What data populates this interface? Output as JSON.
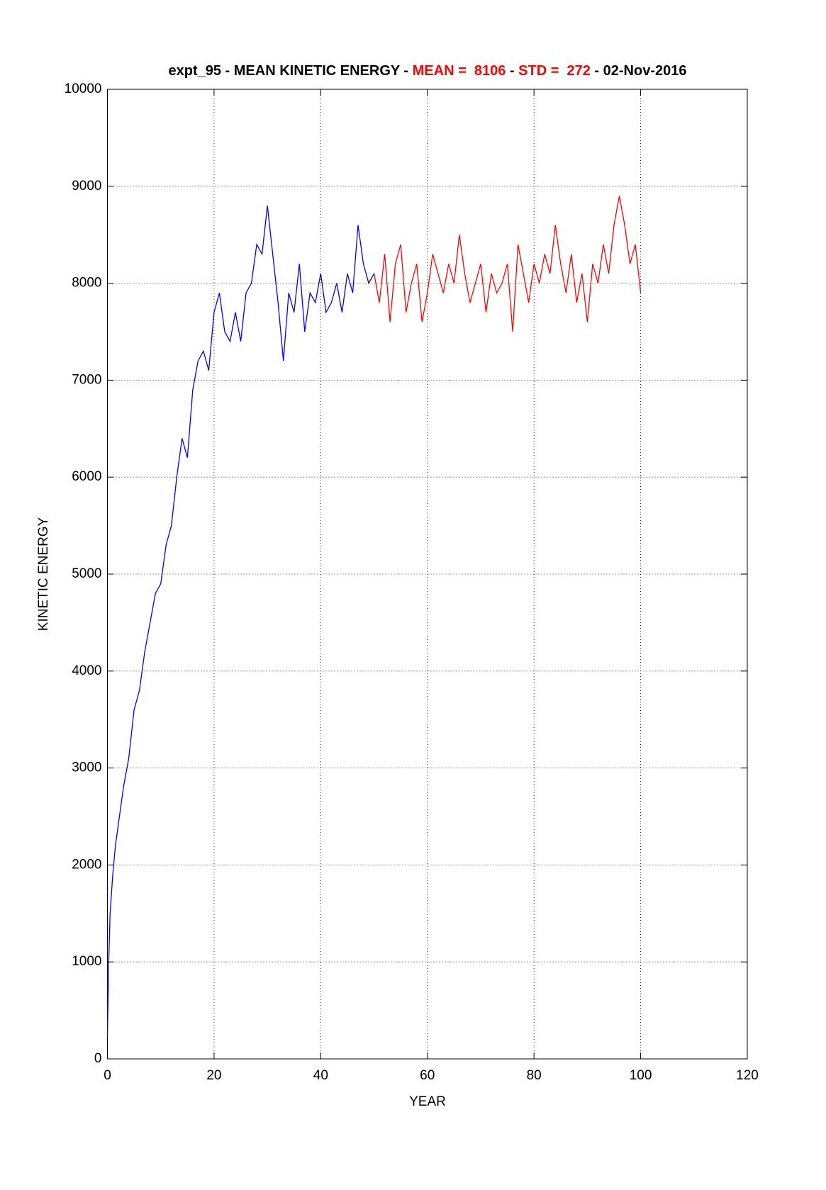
{
  "chart_data": {
    "type": "line",
    "title_parts": [
      {
        "text": "expt_95 - MEAN KINETIC ENERGY - ",
        "color": "#000000"
      },
      {
        "text": "MEAN =  8106",
        "color": "#ff0000"
      },
      {
        "text": " - ",
        "color": "#000000"
      },
      {
        "text": "STD =  272",
        "color": "#ff0000"
      },
      {
        "text": " - 02-Nov-2016",
        "color": "#000000"
      }
    ],
    "x_label": "YEAR",
    "y_label": "KINETIC ENERGY",
    "xlim": [
      0,
      120
    ],
    "ylim": [
      0,
      10000
    ],
    "xticks": [
      0,
      20,
      40,
      60,
      80,
      100,
      120
    ],
    "yticks": [
      0,
      1000,
      2000,
      3000,
      4000,
      5000,
      6000,
      7000,
      8000,
      9000,
      10000
    ],
    "grid": true,
    "series": [
      {
        "color": "#0000ff",
        "x": [
          0,
          0.2,
          0.5,
          1,
          1.5,
          2,
          3,
          4,
          5,
          6,
          7,
          8,
          9,
          10,
          11,
          12,
          13,
          14,
          15,
          16,
          17,
          18,
          19,
          20,
          21,
          22,
          23,
          24,
          25,
          26,
          27,
          28,
          29,
          30,
          31,
          32,
          33,
          34,
          35,
          36,
          37,
          38,
          39,
          40,
          41,
          42,
          43,
          44,
          45,
          46,
          47,
          48,
          49,
          50
        ],
        "values": [
          250,
          900,
          1500,
          1900,
          2200,
          2400,
          2800,
          3100,
          3600,
          3800,
          4200,
          4500,
          4800,
          4900,
          5300,
          5500,
          6000,
          6400,
          6200,
          6900,
          7200,
          7300,
          7100,
          7700,
          7900,
          7500,
          7400,
          7700,
          7400,
          7900,
          8000,
          8400,
          8300,
          8800,
          8300,
          7800,
          7200,
          7900,
          7700,
          8200,
          7500,
          7900,
          7800,
          8100,
          7700,
          7800,
          8000,
          7700,
          8100,
          7900,
          8600,
          8200,
          8000,
          8100
        ]
      },
      {
        "color": "#ff0000",
        "x": [
          50,
          51,
          52,
          53,
          54,
          55,
          56,
          57,
          58,
          59,
          60,
          61,
          62,
          63,
          64,
          65,
          66,
          67,
          68,
          69,
          70,
          71,
          72,
          73,
          74,
          75,
          76,
          77,
          78,
          79,
          80,
          81,
          82,
          83,
          84,
          85,
          86,
          87,
          88,
          89,
          90,
          91,
          92,
          93,
          94,
          95,
          96,
          97,
          98,
          99,
          100
        ],
        "values": [
          8100,
          7800,
          8300,
          7600,
          8200,
          8400,
          7700,
          8000,
          8200,
          7600,
          7900,
          8300,
          8100,
          7900,
          8200,
          8000,
          8500,
          8100,
          7800,
          8000,
          8200,
          7700,
          8100,
          7900,
          8000,
          8200,
          7500,
          8400,
          8100,
          7800,
          8200,
          8000,
          8300,
          8100,
          8600,
          8200,
          7900,
          8300,
          7800,
          8100,
          7600,
          8200,
          8000,
          8400,
          8100,
          8600,
          8900,
          8600,
          8200,
          8400,
          7900
        ]
      }
    ]
  }
}
